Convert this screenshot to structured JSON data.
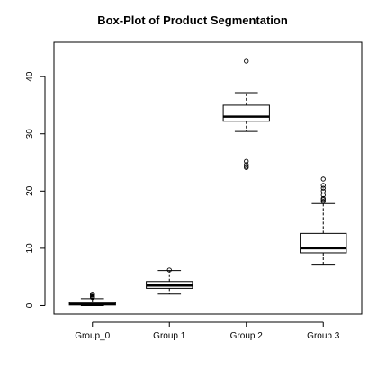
{
  "chart_data": {
    "type": "box",
    "title": "Box-Plot of Product Segmentation",
    "xlabel": "",
    "ylabel": "",
    "categories": [
      "Group_0",
      "Group 1",
      "Group 2",
      "Group 3"
    ],
    "ylim": [
      -1.5,
      46
    ],
    "yticks": [
      0,
      10,
      20,
      30,
      40
    ],
    "grid": false,
    "legend": "none",
    "boxes": [
      {
        "name": "Group_0",
        "whisker_low": 0.0,
        "q1": 0.1,
        "median": 0.3,
        "q3": 0.6,
        "whisker_high": 1.2,
        "outliers": [
          1.4,
          1.5,
          1.6,
          1.8,
          1.9,
          2.0
        ]
      },
      {
        "name": "Group 1",
        "whisker_low": 2.0,
        "q1": 3.0,
        "median": 3.5,
        "q3": 4.2,
        "whisker_high": 6.1,
        "outliers": [
          6.2
        ]
      },
      {
        "name": "Group 2",
        "whisker_low": 30.4,
        "q1": 32.2,
        "median": 33.0,
        "q3": 35.0,
        "whisker_high": 37.2,
        "outliers": [
          24.1,
          24.3,
          24.6,
          25.2,
          42.7
        ]
      },
      {
        "name": "Group 3",
        "whisker_low": 7.2,
        "q1": 9.2,
        "median": 10.0,
        "q3": 12.6,
        "whisker_high": 17.8,
        "outliers": [
          18.2,
          18.5,
          18.7,
          19.3,
          20.0,
          20.5,
          21.0,
          22.1
        ]
      }
    ]
  }
}
